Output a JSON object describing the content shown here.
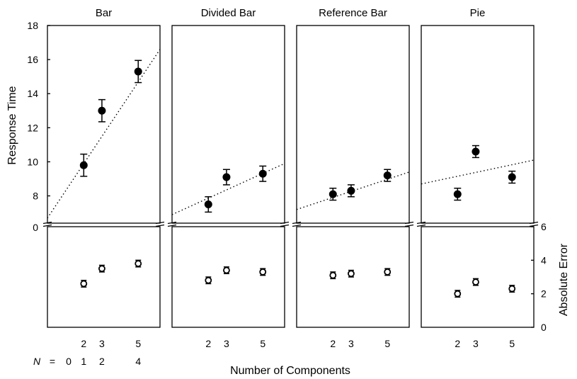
{
  "chart_data": {
    "type": "scatter",
    "xlabel": "Number of Components",
    "ylabel_top": "Response Time",
    "ylabel_bottom": "Absolute Error",
    "x_ticks": [
      2,
      3,
      5
    ],
    "n_row": {
      "label": "N",
      "equals": "=",
      "values": [
        "0",
        "1",
        "2",
        "4"
      ]
    },
    "top_y_ticks": [
      0,
      8,
      10,
      12,
      14,
      16,
      18
    ],
    "top_ylim": [
      6.4,
      18
    ],
    "bottom_y_ticks": [
      0,
      2,
      4,
      6
    ],
    "bottom_ylim": [
      0,
      6
    ],
    "xlim": [
      0,
      6.2
    ],
    "panels": [
      {
        "title": "Bar",
        "response_time": [
          {
            "x": 2,
            "y": 9.8,
            "err": 0.65
          },
          {
            "x": 3,
            "y": 13.0,
            "err": 0.65
          },
          {
            "x": 5,
            "y": 15.3,
            "err": 0.65
          }
        ],
        "trend": [
          [
            0,
            6.7
          ],
          [
            6.2,
            16.6
          ]
        ],
        "absolute_error": [
          {
            "x": 2,
            "y": 2.6,
            "err": 0.2
          },
          {
            "x": 3,
            "y": 3.5,
            "err": 0.2
          },
          {
            "x": 5,
            "y": 3.8,
            "err": 0.2
          }
        ]
      },
      {
        "title": "Divided Bar",
        "response_time": [
          {
            "x": 2,
            "y": 7.5,
            "err": 0.45
          },
          {
            "x": 3,
            "y": 9.1,
            "err": 0.45
          },
          {
            "x": 5,
            "y": 9.3,
            "err": 0.45
          }
        ],
        "trend": [
          [
            0,
            6.9
          ],
          [
            6.2,
            9.9
          ]
        ],
        "absolute_error": [
          {
            "x": 2,
            "y": 2.8,
            "err": 0.2
          },
          {
            "x": 3,
            "y": 3.4,
            "err": 0.2
          },
          {
            "x": 5,
            "y": 3.3,
            "err": 0.2
          }
        ]
      },
      {
        "title": "Reference Bar",
        "response_time": [
          {
            "x": 2,
            "y": 8.1,
            "err": 0.35
          },
          {
            "x": 3,
            "y": 8.3,
            "err": 0.35
          },
          {
            "x": 5,
            "y": 9.2,
            "err": 0.35
          }
        ],
        "trend": [
          [
            0,
            7.2
          ],
          [
            6.2,
            9.4
          ]
        ],
        "absolute_error": [
          {
            "x": 2,
            "y": 3.1,
            "err": 0.2
          },
          {
            "x": 3,
            "y": 3.2,
            "err": 0.2
          },
          {
            "x": 5,
            "y": 3.3,
            "err": 0.2
          }
        ]
      },
      {
        "title": "Pie",
        "response_time": [
          {
            "x": 2,
            "y": 8.1,
            "err": 0.35
          },
          {
            "x": 3,
            "y": 10.6,
            "err": 0.35
          },
          {
            "x": 5,
            "y": 9.1,
            "err": 0.35
          }
        ],
        "trend": [
          [
            0,
            8.7
          ],
          [
            6.2,
            10.1
          ]
        ],
        "absolute_error": [
          {
            "x": 2,
            "y": 2.0,
            "err": 0.2
          },
          {
            "x": 3,
            "y": 2.7,
            "err": 0.2
          },
          {
            "x": 5,
            "y": 2.3,
            "err": 0.2
          }
        ]
      }
    ]
  }
}
